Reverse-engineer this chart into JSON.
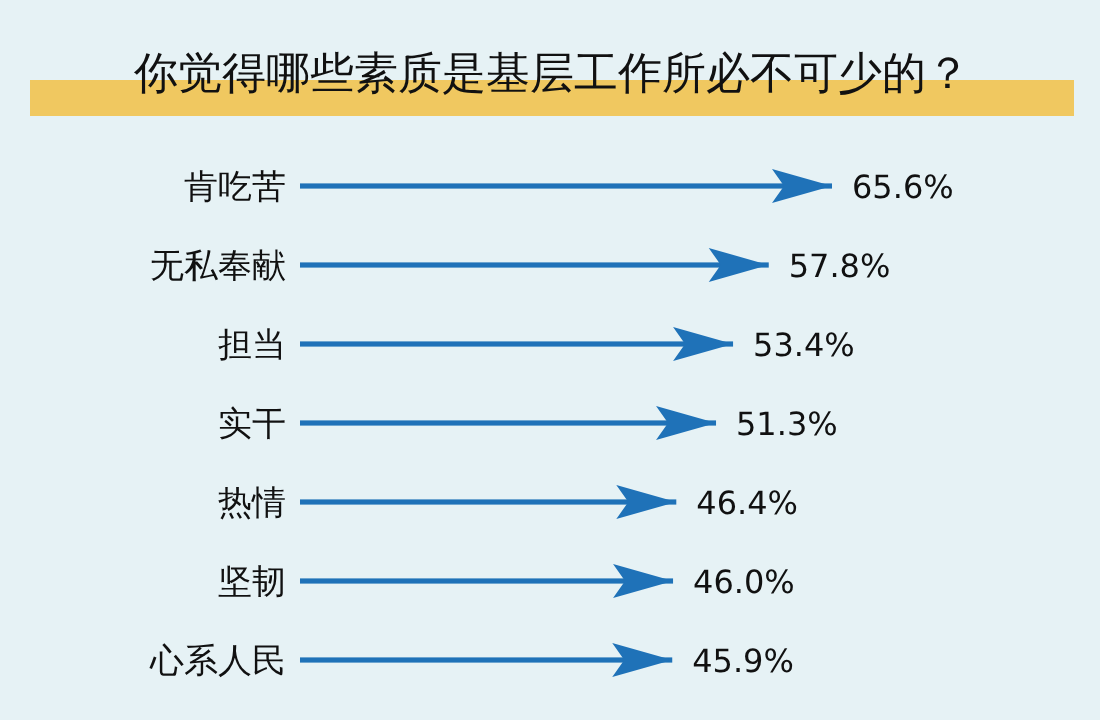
{
  "chart_data": {
    "type": "bar",
    "orientation": "horizontal",
    "title": "你觉得哪些素质是基层工作所必不可少的？",
    "categories": [
      "肯吃苦",
      "无私奉献",
      "担当",
      "实干",
      "热情",
      "坚韧",
      "心系人民"
    ],
    "values": [
      65.6,
      57.8,
      53.4,
      51.3,
      46.4,
      46.0,
      45.9
    ],
    "value_labels": [
      "65.6%",
      "57.8%",
      "53.4%",
      "51.3%",
      "46.4%",
      "46.0%",
      "45.9%"
    ],
    "color": "#1f72b8"
  }
}
